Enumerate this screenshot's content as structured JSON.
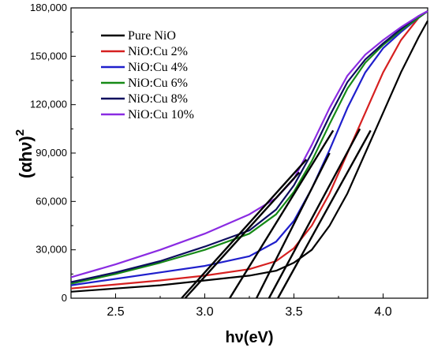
{
  "chart_data": {
    "type": "line",
    "xlabel": "hν(eV)",
    "ylabel_base": "(αhν)",
    "ylabel_sup": "2",
    "xlim": [
      2.25,
      4.25
    ],
    "ylim": [
      0,
      180000
    ],
    "x_ticks": [
      2.5,
      3.0,
      3.5,
      4.0
    ],
    "x_tick_labels": [
      "2.5",
      "3.0",
      "3.5",
      "4.0"
    ],
    "y_ticks": [
      0,
      30000,
      60000,
      90000,
      120000,
      150000,
      180000
    ],
    "y_tick_labels": [
      "0",
      "30,000",
      "60,000",
      "90,000",
      "120,000",
      "150,000",
      "180,000"
    ],
    "legend_position": "top-left",
    "grid": false,
    "series": [
      {
        "name": "Pure NiO",
        "color": "#000000",
        "points": [
          [
            2.25,
            4000
          ],
          [
            2.5,
            6000
          ],
          [
            2.75,
            8000
          ],
          [
            3.0,
            11000
          ],
          [
            3.25,
            14000
          ],
          [
            3.4,
            17000
          ],
          [
            3.5,
            22000
          ],
          [
            3.6,
            30000
          ],
          [
            3.7,
            45000
          ],
          [
            3.8,
            65000
          ],
          [
            3.9,
            90000
          ],
          [
            4.0,
            115000
          ],
          [
            4.1,
            140000
          ],
          [
            4.2,
            162000
          ],
          [
            4.25,
            172000
          ]
        ]
      },
      {
        "name": "NiO:Cu 2%",
        "color": "#d62020",
        "points": [
          [
            2.25,
            6000
          ],
          [
            2.5,
            8500
          ],
          [
            2.75,
            11000
          ],
          [
            3.0,
            14000
          ],
          [
            3.25,
            18000
          ],
          [
            3.4,
            23000
          ],
          [
            3.5,
            31000
          ],
          [
            3.6,
            45000
          ],
          [
            3.7,
            65000
          ],
          [
            3.8,
            90000
          ],
          [
            3.9,
            115000
          ],
          [
            4.0,
            140000
          ],
          [
            4.1,
            160000
          ],
          [
            4.2,
            174000
          ],
          [
            4.25,
            178000
          ]
        ]
      },
      {
        "name": "NiO:Cu 4%",
        "color": "#1f1fcc",
        "points": [
          [
            2.25,
            8000
          ],
          [
            2.5,
            12000
          ],
          [
            2.75,
            16000
          ],
          [
            3.0,
            20000
          ],
          [
            3.25,
            26000
          ],
          [
            3.4,
            35000
          ],
          [
            3.5,
            48000
          ],
          [
            3.6,
            68000
          ],
          [
            3.7,
            92000
          ],
          [
            3.8,
            118000
          ],
          [
            3.9,
            140000
          ],
          [
            4.0,
            155000
          ],
          [
            4.1,
            165000
          ],
          [
            4.2,
            174000
          ],
          [
            4.25,
            178000
          ]
        ]
      },
      {
        "name": "NiO:Cu 6%",
        "color": "#168a16",
        "points": [
          [
            2.25,
            9000
          ],
          [
            2.5,
            15000
          ],
          [
            2.75,
            22000
          ],
          [
            3.0,
            30000
          ],
          [
            3.25,
            40000
          ],
          [
            3.4,
            52000
          ],
          [
            3.5,
            66000
          ],
          [
            3.6,
            85000
          ],
          [
            3.7,
            108000
          ],
          [
            3.8,
            130000
          ],
          [
            3.9,
            146000
          ],
          [
            4.0,
            157000
          ],
          [
            4.1,
            166000
          ],
          [
            4.2,
            174000
          ],
          [
            4.25,
            178000
          ]
        ]
      },
      {
        "name": "NiO:Cu 8%",
        "color": "#0d0d5e",
        "points": [
          [
            2.25,
            10000
          ],
          [
            2.5,
            16000
          ],
          [
            2.75,
            23000
          ],
          [
            3.0,
            32000
          ],
          [
            3.25,
            42000
          ],
          [
            3.4,
            55000
          ],
          [
            3.5,
            70000
          ],
          [
            3.6,
            90000
          ],
          [
            3.7,
            113000
          ],
          [
            3.8,
            134000
          ],
          [
            3.9,
            148000
          ],
          [
            4.0,
            158000
          ],
          [
            4.1,
            167000
          ],
          [
            4.2,
            175000
          ],
          [
            4.25,
            178000
          ]
        ]
      },
      {
        "name": "NiO:Cu 10%",
        "color": "#8a2be2",
        "points": [
          [
            2.25,
            13000
          ],
          [
            2.5,
            21000
          ],
          [
            2.75,
            30000
          ],
          [
            3.0,
            40000
          ],
          [
            3.25,
            52000
          ],
          [
            3.4,
            62000
          ],
          [
            3.5,
            74000
          ],
          [
            3.6,
            95000
          ],
          [
            3.7,
            118000
          ],
          [
            3.8,
            138000
          ],
          [
            3.9,
            151000
          ],
          [
            4.0,
            160000
          ],
          [
            4.1,
            168000
          ],
          [
            4.2,
            175000
          ],
          [
            4.25,
            178000
          ]
        ]
      }
    ],
    "tangent_lines": [
      {
        "color": "#000000",
        "points": [
          [
            2.87,
            0
          ],
          [
            3.57,
            86000
          ]
        ]
      },
      {
        "color": "#000000",
        "points": [
          [
            2.89,
            0
          ],
          [
            3.53,
            78000
          ]
        ]
      },
      {
        "color": "#000000",
        "points": [
          [
            3.14,
            0
          ],
          [
            3.72,
            104000
          ]
        ]
      },
      {
        "color": "#000000",
        "points": [
          [
            3.29,
            0
          ],
          [
            3.7,
            90000
          ]
        ]
      },
      {
        "color": "#000000",
        "points": [
          [
            3.36,
            0
          ],
          [
            3.87,
            105000
          ]
        ]
      },
      {
        "color": "#000000",
        "points": [
          [
            3.41,
            0
          ],
          [
            3.93,
            104000
          ]
        ]
      }
    ]
  }
}
